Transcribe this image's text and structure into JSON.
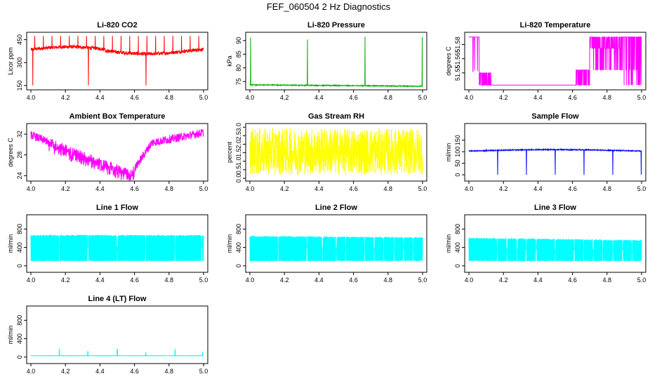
{
  "page_title": "FEF_060504  2 Hz Diagnostics",
  "chart_data": [
    {
      "id": "co2",
      "type": "line",
      "title": "Li-820 CO2",
      "ylabel": "Licor ppm",
      "color": "#ff0000",
      "xlim": [
        4.0,
        5.0
      ],
      "ylim": [
        140,
        480
      ],
      "yticks": [
        150,
        300,
        450
      ],
      "ytick_labels": [
        "150",
        "300",
        "450"
      ],
      "xticks": [
        4.0,
        4.2,
        4.4,
        4.6,
        4.8,
        5.0
      ],
      "xtick_labels": [
        "4.0",
        "4.2",
        "4.4",
        "4.6",
        "4.8",
        "5.0"
      ],
      "pattern": "co2"
    },
    {
      "id": "pressure",
      "type": "line",
      "title": "Li-820 Pressure",
      "ylabel": "kPa",
      "color": "#00b000",
      "xlim": [
        4.0,
        5.0
      ],
      "ylim": [
        73,
        92
      ],
      "yticks": [
        75,
        80,
        85,
        90
      ],
      "ytick_labels": [
        "75",
        "80",
        "85",
        "90"
      ],
      "xticks": [
        4.0,
        4.2,
        4.4,
        4.6,
        4.8,
        5.0
      ],
      "xtick_labels": [
        "4.0",
        "4.2",
        "4.4",
        "4.6",
        "4.8",
        "5.0"
      ],
      "pattern": "pressure"
    },
    {
      "id": "licor-temp",
      "type": "line",
      "title": "Li-820 Temperature",
      "ylabel": "degrees C",
      "color": "#ff00ff",
      "xlim": [
        4.0,
        5.0
      ],
      "ylim": [
        51.535,
        51.59
      ],
      "yticks": [
        51.55,
        51.565,
        51.58
      ],
      "ytick_labels": [
        "51.55",
        "51.565",
        "51.58"
      ],
      "xticks": [
        4.0,
        4.2,
        4.4,
        4.6,
        4.8,
        5.0
      ],
      "xtick_labels": [
        "4.0",
        "4.2",
        "4.4",
        "4.6",
        "4.8",
        "5.0"
      ],
      "pattern": "licortemp"
    },
    {
      "id": "box-temp",
      "type": "line",
      "title": "Ambient Box Temperature",
      "ylabel": "degrees C",
      "color": "#ff00ff",
      "xlim": [
        4.0,
        5.0
      ],
      "ylim": [
        23.5,
        33.5
      ],
      "yticks": [
        24,
        28,
        32
      ],
      "ytick_labels": [
        "24",
        "28",
        "32"
      ],
      "xticks": [
        4.0,
        4.2,
        4.4,
        4.6,
        4.8,
        5.0
      ],
      "xtick_labels": [
        "4.0",
        "4.2",
        "4.4",
        "4.6",
        "4.8",
        "5.0"
      ],
      "pattern": "boxtemp"
    },
    {
      "id": "rh",
      "type": "line",
      "title": "Gas Stream RH",
      "ylabel": "percent",
      "color": "#ffff00",
      "xlim": [
        4.0,
        5.0
      ],
      "ylim": [
        0,
        3.05
      ],
      "yticks": [
        0.0,
        0.5,
        1.0,
        1.5,
        2.0,
        2.5,
        3.0
      ],
      "ytick_labels": [
        "0.0",
        "0.5",
        "1.0",
        "1.5",
        "2.0",
        "2.5",
        "3.0"
      ],
      "xticks": [
        4.0,
        4.2,
        4.4,
        4.6,
        4.8,
        5.0
      ],
      "xtick_labels": [
        "4.0",
        "4.2",
        "4.4",
        "4.6",
        "4.8",
        "5.0"
      ],
      "pattern": "rh"
    },
    {
      "id": "sample-flow",
      "type": "line",
      "title": "Sample Flow",
      "ylabel": "ml/min",
      "color": "#0000ff",
      "xlim": [
        4.0,
        5.0
      ],
      "ylim": [
        -15,
        210
      ],
      "yticks": [
        0,
        50,
        100,
        150
      ],
      "ytick_labels": [
        "0",
        "50",
        "100",
        "150"
      ],
      "xticks": [
        4.0,
        4.2,
        4.4,
        4.6,
        4.8,
        5.0
      ],
      "xtick_labels": [
        "4.0",
        "4.2",
        "4.4",
        "4.6",
        "4.8",
        "5.0"
      ],
      "pattern": "sampleflow"
    },
    {
      "id": "line1",
      "type": "line",
      "title": "Line 1 Flow",
      "ylabel": "ml/min",
      "color": "#00ffff",
      "xlim": [
        4.0,
        5.0
      ],
      "ylim": [
        -80,
        1050
      ],
      "yticks": [
        0,
        400,
        800
      ],
      "ytick_labels": [
        "0",
        "400",
        "800"
      ],
      "xticks": [
        4.0,
        4.2,
        4.4,
        4.6,
        4.8,
        5.0
      ],
      "xtick_labels": [
        "4.0",
        "4.2",
        "4.4",
        "4.6",
        "4.8",
        "5.0"
      ],
      "pattern": "lineflow",
      "band_low": 100,
      "band_high": 660,
      "band_drift": 0,
      "gaps": [
        4.165,
        4.33,
        4.5,
        4.665,
        4.835,
        4.99
      ]
    },
    {
      "id": "line2",
      "type": "line",
      "title": "Line 2 Flow",
      "ylabel": "ml/min",
      "color": "#00ffff",
      "xlim": [
        4.0,
        5.0
      ],
      "ylim": [
        -80,
        1050
      ],
      "yticks": [
        0,
        400,
        800
      ],
      "ytick_labels": [
        "0",
        "400",
        "800"
      ],
      "xticks": [
        4.0,
        4.2,
        4.4,
        4.6,
        4.8,
        5.0
      ],
      "xtick_labels": [
        "4.0",
        "4.2",
        "4.4",
        "4.6",
        "4.8",
        "5.0"
      ],
      "pattern": "lineflow",
      "band_low": 100,
      "band_high": 640,
      "band_drift": -30,
      "gaps": [
        4.165,
        4.33,
        4.42,
        4.5,
        4.555,
        4.665,
        4.72,
        4.775,
        4.835,
        4.89,
        4.945
      ]
    },
    {
      "id": "line3",
      "type": "line",
      "title": "Line 3 Flow",
      "ylabel": "ml/min",
      "color": "#00ffff",
      "xlim": [
        4.0,
        5.0
      ],
      "ylim": [
        -80,
        1050
      ],
      "yticks": [
        0,
        400,
        800
      ],
      "ytick_labels": [
        "0",
        "400",
        "800"
      ],
      "xticks": [
        4.0,
        4.2,
        4.4,
        4.6,
        4.8,
        5.0
      ],
      "xtick_labels": [
        "4.0",
        "4.2",
        "4.4",
        "4.6",
        "4.8",
        "5.0"
      ],
      "pattern": "lineflow",
      "band_low": 100,
      "band_high": 600,
      "band_drift": -50,
      "gaps": [
        4.165,
        4.22,
        4.28,
        4.33,
        4.39,
        4.5,
        4.61,
        4.665,
        4.72,
        4.775,
        4.835,
        4.89,
        4.945
      ]
    },
    {
      "id": "line4",
      "type": "line",
      "title": "Line 4 (LT) Flow",
      "ylabel": "ml/min",
      "color": "#00ffff",
      "xlim": [
        4.0,
        5.0
      ],
      "ylim": [
        -80,
        1050
      ],
      "yticks": [
        0,
        400,
        800
      ],
      "ytick_labels": [
        "0",
        "400",
        "800"
      ],
      "xticks": [
        4.0,
        4.2,
        4.4,
        4.6,
        4.8,
        5.0
      ],
      "xtick_labels": [
        "4.0",
        "4.2",
        "4.4",
        "4.6",
        "4.8",
        "5.0"
      ],
      "pattern": "line4",
      "baseline": 30,
      "spikes": [
        [
          4.165,
          180
        ],
        [
          4.33,
          120
        ],
        [
          4.5,
          170
        ],
        [
          4.665,
          100
        ],
        [
          4.835,
          170
        ],
        [
          4.995,
          110
        ]
      ]
    }
  ]
}
